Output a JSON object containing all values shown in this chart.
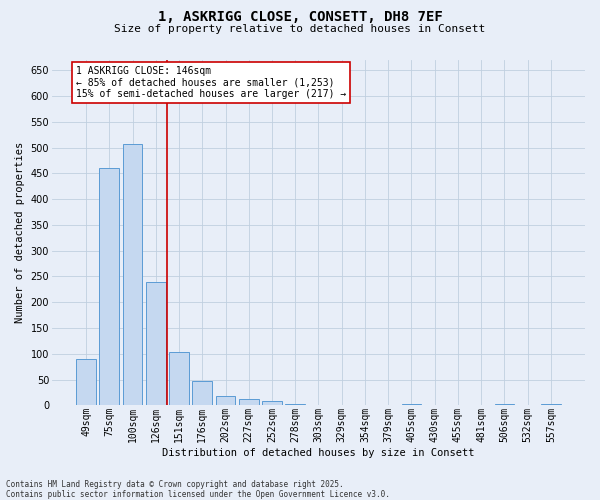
{
  "title": "1, ASKRIGG CLOSE, CONSETT, DH8 7EF",
  "subtitle": "Size of property relative to detached houses in Consett",
  "xlabel": "Distribution of detached houses by size in Consett",
  "ylabel": "Number of detached properties",
  "categories": [
    "49sqm",
    "75sqm",
    "100sqm",
    "126sqm",
    "151sqm",
    "176sqm",
    "202sqm",
    "227sqm",
    "252sqm",
    "278sqm",
    "303sqm",
    "329sqm",
    "354sqm",
    "379sqm",
    "405sqm",
    "430sqm",
    "455sqm",
    "481sqm",
    "506sqm",
    "532sqm",
    "557sqm"
  ],
  "values": [
    90,
    460,
    507,
    240,
    103,
    47,
    18,
    13,
    8,
    2,
    0,
    0,
    0,
    0,
    3,
    0,
    0,
    0,
    2,
    0,
    3
  ],
  "bar_color": "#c5d8f0",
  "bar_edge_color": "#5b9bd5",
  "grid_color": "#c0cfe0",
  "background_color": "#e8eef8",
  "vline_color": "#cc0000",
  "annotation_title": "1 ASKRIGG CLOSE: 146sqm",
  "annotation_line1": "← 85% of detached houses are smaller (1,253)",
  "annotation_line2": "15% of semi-detached houses are larger (217) →",
  "footer_line1": "Contains HM Land Registry data © Crown copyright and database right 2025.",
  "footer_line2": "Contains public sector information licensed under the Open Government Licence v3.0.",
  "ylim": [
    0,
    670
  ],
  "yticks": [
    0,
    50,
    100,
    150,
    200,
    250,
    300,
    350,
    400,
    450,
    500,
    550,
    600,
    650
  ],
  "vline_pos": 3.5,
  "title_fontsize": 10,
  "subtitle_fontsize": 8,
  "axis_label_fontsize": 7.5,
  "tick_fontsize": 7,
  "annotation_fontsize": 7,
  "footer_fontsize": 5.5
}
